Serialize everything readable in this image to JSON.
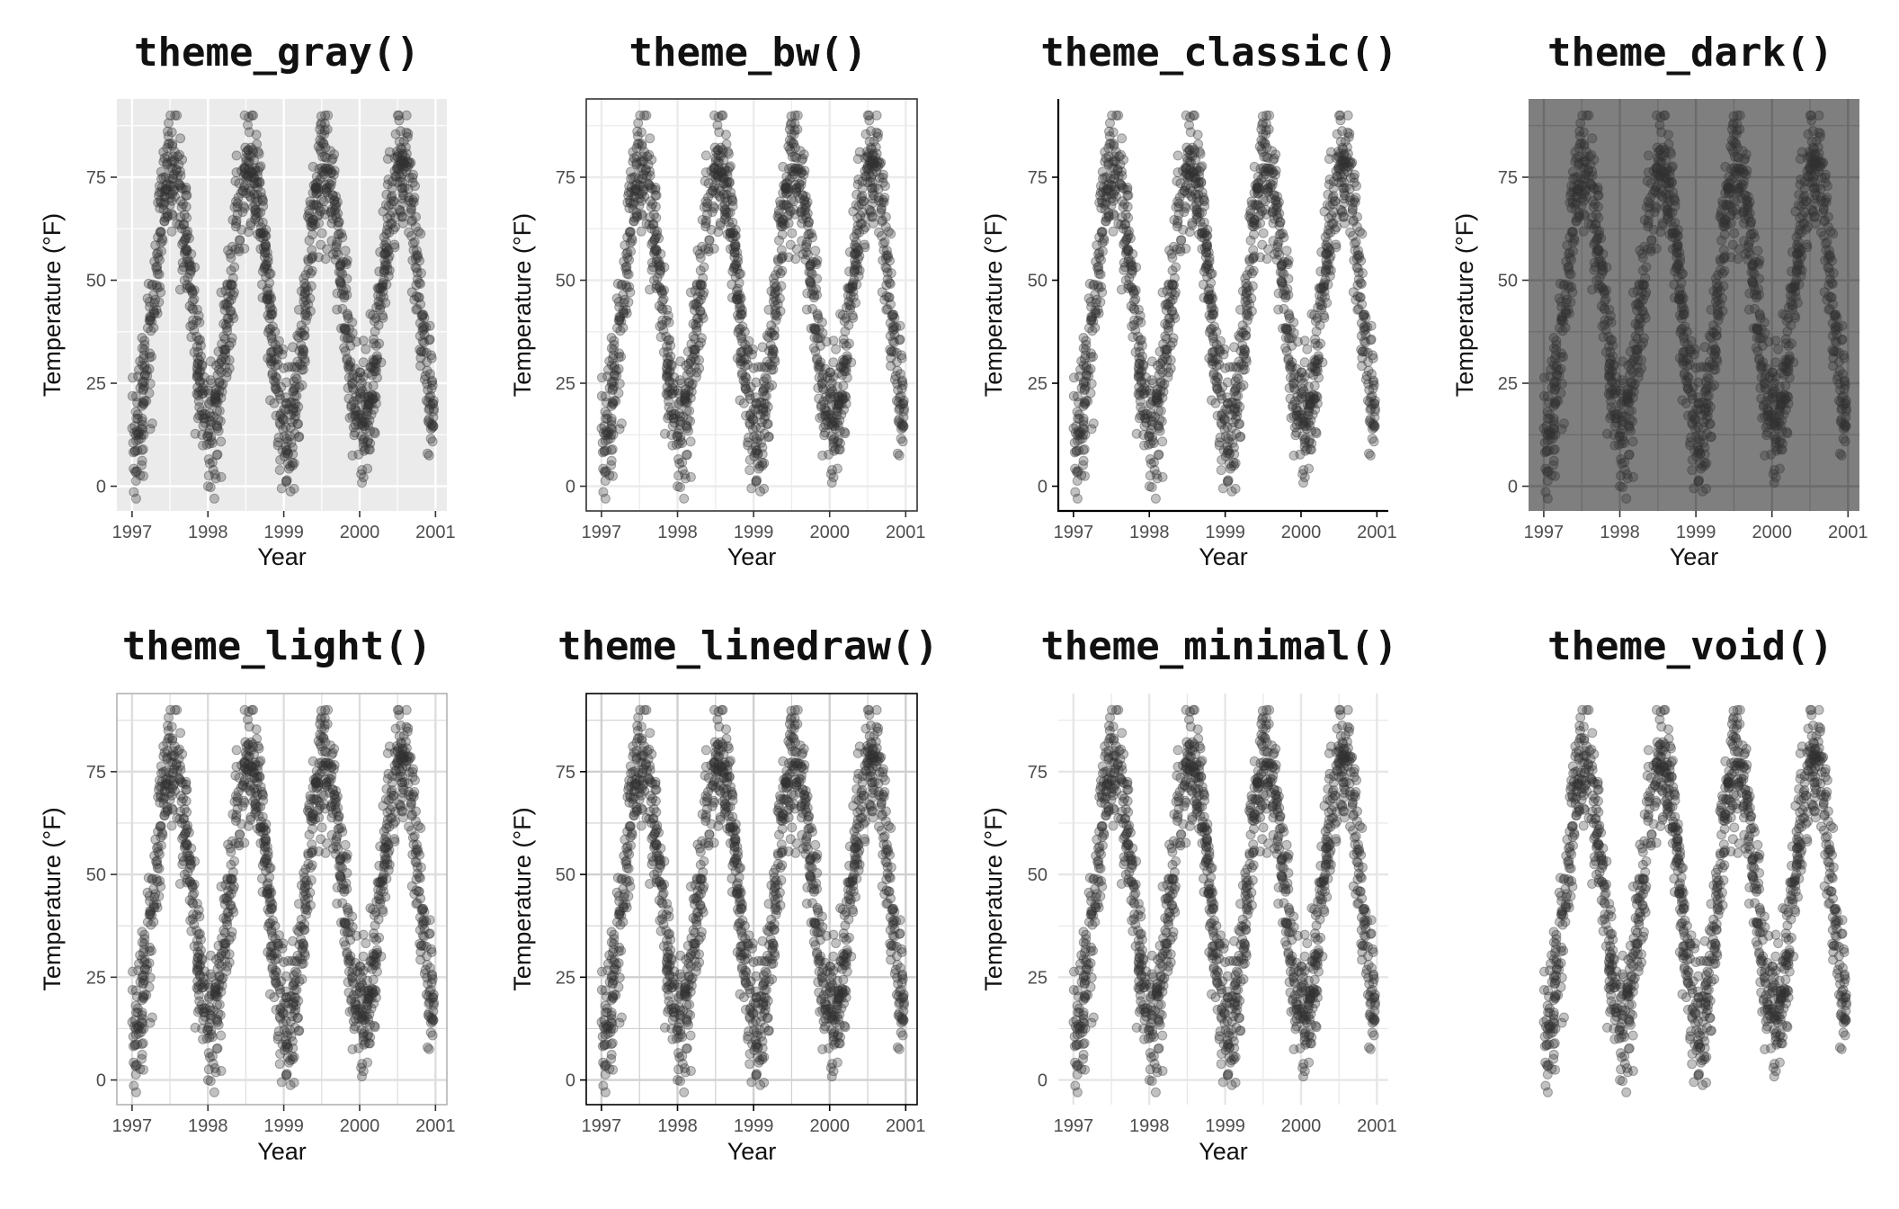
{
  "figure": {
    "point_color": "#333333",
    "point_opacity": 0.3
  },
  "chart_data": [
    {
      "type": "scatter",
      "title": "theme_gray()",
      "theme": "gray",
      "xlabel": "Year",
      "ylabel": "Temperature (°F)",
      "xlim": [
        1996.8,
        2001.15
      ],
      "ylim": [
        -6,
        94
      ],
      "xticks": [
        1997,
        1998,
        1999,
        2000,
        2001
      ],
      "xtick_labels": [
        "1997",
        "1998",
        "1999",
        "2000",
        "2001"
      ],
      "yticks": [
        0,
        25,
        50,
        75
      ],
      "ytick_labels": [
        "0",
        "25",
        "50",
        "75"
      ],
      "panel_background": "#ebebeb",
      "grid": true,
      "grid_color": "#ffffff",
      "border": "none",
      "axis_lines": false
    },
    {
      "type": "scatter",
      "title": "theme_bw()",
      "theme": "bw",
      "xlabel": "Year",
      "ylabel": "Temperature (°F)",
      "xlim": [
        1996.8,
        2001.15
      ],
      "ylim": [
        -6,
        94
      ],
      "xticks": [
        1997,
        1998,
        1999,
        2000,
        2001
      ],
      "xtick_labels": [
        "1997",
        "1998",
        "1999",
        "2000",
        "2001"
      ],
      "yticks": [
        0,
        25,
        50,
        75
      ],
      "ytick_labels": [
        "0",
        "25",
        "50",
        "75"
      ],
      "panel_background": "#ffffff",
      "grid": true,
      "grid_color": "#ebebeb",
      "border": "#333333",
      "axis_lines": false
    },
    {
      "type": "scatter",
      "title": "theme_classic()",
      "theme": "classic",
      "xlabel": "Year",
      "ylabel": "Temperature (°F)",
      "xlim": [
        1996.8,
        2001.15
      ],
      "ylim": [
        -6,
        94
      ],
      "xticks": [
        1997,
        1998,
        1999,
        2000,
        2001
      ],
      "xtick_labels": [
        "1997",
        "1998",
        "1999",
        "2000",
        "2001"
      ],
      "yticks": [
        0,
        25,
        50,
        75
      ],
      "ytick_labels": [
        "0",
        "25",
        "50",
        "75"
      ],
      "panel_background": "#ffffff",
      "grid": false,
      "border": "none",
      "axis_lines": true
    },
    {
      "type": "scatter",
      "title": "theme_dark()",
      "theme": "dark",
      "xlabel": "Year",
      "ylabel": "Temperature (°F)",
      "xlim": [
        1996.8,
        2001.15
      ],
      "ylim": [
        -6,
        94
      ],
      "xticks": [
        1997,
        1998,
        1999,
        2000,
        2001
      ],
      "xtick_labels": [
        "1997",
        "1998",
        "1999",
        "2000",
        "2001"
      ],
      "yticks": [
        0,
        25,
        50,
        75
      ],
      "ytick_labels": [
        "0",
        "25",
        "50",
        "75"
      ],
      "panel_background": "#7f7f7f",
      "grid": true,
      "grid_color": "#6b6b6b",
      "border": "none",
      "axis_lines": false
    },
    {
      "type": "scatter",
      "title": "theme_light()",
      "theme": "light",
      "xlabel": "Year",
      "ylabel": "Temperature (°F)",
      "xlim": [
        1996.8,
        2001.15
      ],
      "ylim": [
        -6,
        94
      ],
      "xticks": [
        1997,
        1998,
        1999,
        2000,
        2001
      ],
      "xtick_labels": [
        "1997",
        "1998",
        "1999",
        "2000",
        "2001"
      ],
      "yticks": [
        0,
        25,
        50,
        75
      ],
      "ytick_labels": [
        "0",
        "25",
        "50",
        "75"
      ],
      "panel_background": "#ffffff",
      "grid": true,
      "grid_color": "#dedede",
      "border": "#b3b3b3",
      "axis_lines": false
    },
    {
      "type": "scatter",
      "title": "theme_linedraw()",
      "theme": "linedraw",
      "xlabel": "Year",
      "ylabel": "Temperature (°F)",
      "xlim": [
        1996.8,
        2001.15
      ],
      "ylim": [
        -6,
        94
      ],
      "xticks": [
        1997,
        1998,
        1999,
        2000,
        2001
      ],
      "xtick_labels": [
        "1997",
        "1998",
        "1999",
        "2000",
        "2001"
      ],
      "yticks": [
        0,
        25,
        50,
        75
      ],
      "ytick_labels": [
        "0",
        "25",
        "50",
        "75"
      ],
      "panel_background": "#ffffff",
      "grid": true,
      "grid_color": "#d0d0d0",
      "border": "#000000",
      "axis_lines": false
    },
    {
      "type": "scatter",
      "title": "theme_minimal()",
      "theme": "minimal",
      "xlabel": "Year",
      "ylabel": "Temperature (°F)",
      "xlim": [
        1996.8,
        2001.15
      ],
      "ylim": [
        -6,
        94
      ],
      "xticks": [
        1997,
        1998,
        1999,
        2000,
        2001
      ],
      "xtick_labels": [
        "1997",
        "1998",
        "1999",
        "2000",
        "2001"
      ],
      "yticks": [
        0,
        25,
        50,
        75
      ],
      "ytick_labels": [
        "0",
        "25",
        "50",
        "75"
      ],
      "panel_background": "#ffffff",
      "grid": true,
      "grid_color": "#e6e6e6",
      "border": "none",
      "axis_lines": false
    },
    {
      "type": "scatter",
      "title": "theme_void()",
      "theme": "void",
      "xlabel": "",
      "ylabel": "",
      "xlim": [
        1996.8,
        2001.15
      ],
      "ylim": [
        -6,
        94
      ],
      "xticks": [],
      "xtick_labels": [],
      "yticks": [],
      "ytick_labels": [],
      "panel_background": "#ffffff",
      "grid": false,
      "border": "none",
      "axis_lines": false
    }
  ]
}
